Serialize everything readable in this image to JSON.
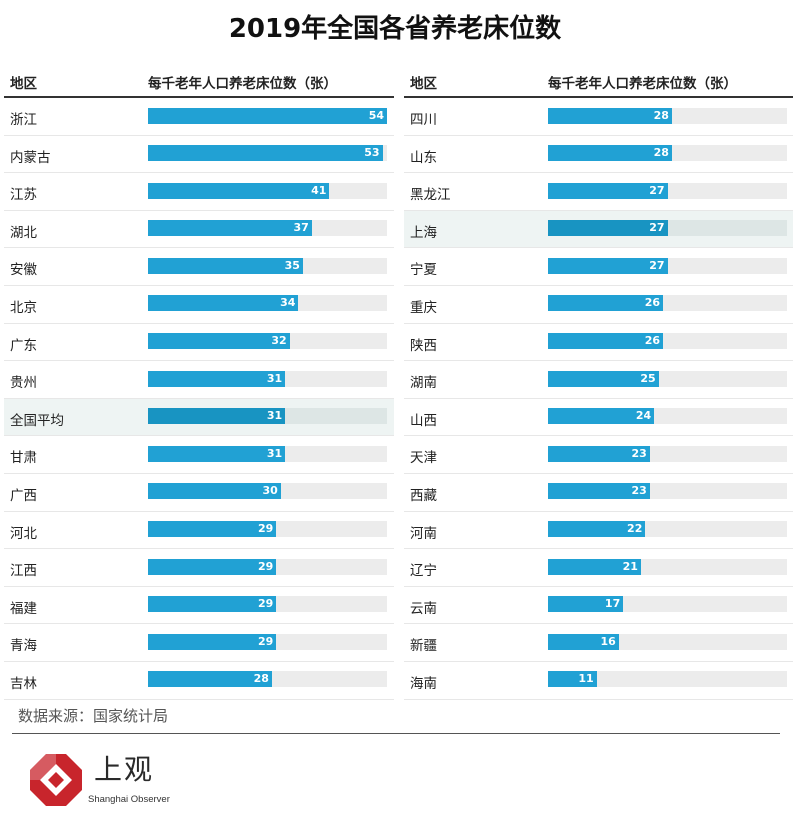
{
  "title": "2019年全国各省养老床位数",
  "header": {
    "region": "地区",
    "value": "每千老年人口养老床位数（张）"
  },
  "chart_data": {
    "type": "bar",
    "orientation": "horizontal",
    "title": "2019年全国各省养老床位数",
    "xlim": [
      0,
      54
    ],
    "highlight": [
      "全国平均",
      "上海"
    ],
    "categories": [
      "浙江",
      "内蒙古",
      "江苏",
      "湖北",
      "安徽",
      "北京",
      "广东",
      "贵州",
      "全国平均",
      "甘肃",
      "广西",
      "河北",
      "江西",
      "福建",
      "青海",
      "吉林",
      "四川",
      "山东",
      "黑龙江",
      "上海",
      "宁夏",
      "重庆",
      "陕西",
      "湖南",
      "山西",
      "天津",
      "西藏",
      "河南",
      "辽宁",
      "云南",
      "新疆",
      "海南"
    ],
    "values": [
      54,
      53,
      41,
      37,
      35,
      34,
      32,
      31,
      31,
      31,
      30,
      29,
      29,
      29,
      29,
      28,
      28,
      28,
      27,
      27,
      27,
      26,
      26,
      25,
      24,
      23,
      23,
      22,
      21,
      17,
      16,
      11
    ],
    "colors": {
      "bar": "#21a1d4",
      "bar_highlight": "#1894c2",
      "track": "#ececec"
    }
  },
  "source": "数据来源：国家统计局",
  "brand": {
    "cn": "上观",
    "en": "Shanghai Observer",
    "accent": "#c8252c"
  }
}
